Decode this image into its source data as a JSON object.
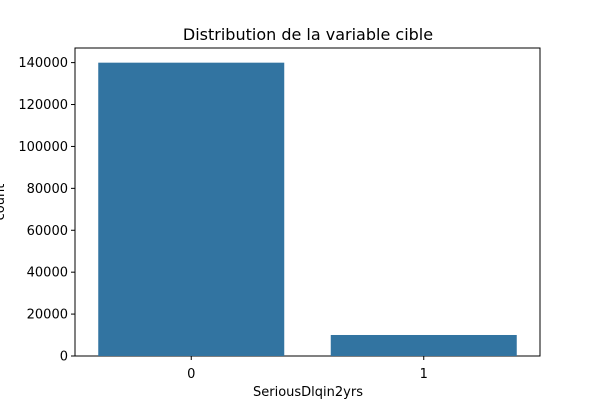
{
  "chart_data": {
    "type": "bar",
    "title": "Distribution de la variable cible",
    "xlabel": "SeriousDlqin2yrs",
    "ylabel": "count",
    "categories": [
      "0",
      "1"
    ],
    "values": [
      139974,
      10026
    ],
    "ylim": [
      0,
      146973
    ],
    "yticks": [
      0,
      20000,
      40000,
      60000,
      80000,
      100000,
      120000,
      140000
    ],
    "grid": false,
    "bar_color": "#3274a1"
  }
}
